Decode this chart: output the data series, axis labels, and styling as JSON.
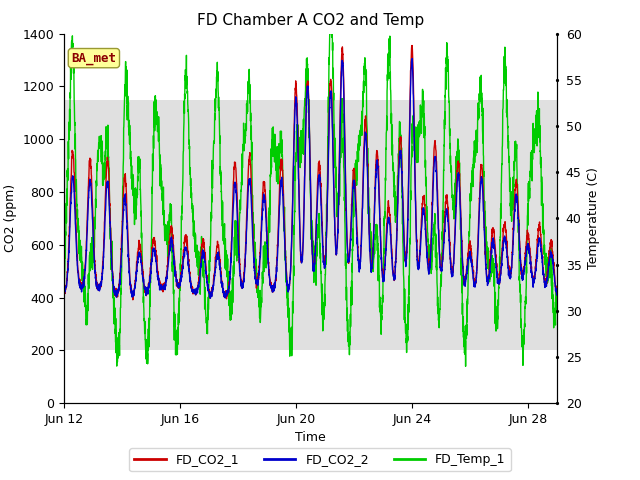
{
  "title": "FD Chamber A CO2 and Temp",
  "xlabel": "Time",
  "ylabel_left": "CO2 (ppm)",
  "ylabel_right": "Temperature (C)",
  "ylim_left": [
    0,
    1400
  ],
  "ylim_right": [
    20,
    60
  ],
  "xlim_start": 0,
  "xlim_end": 17,
  "xtick_positions": [
    0,
    4,
    8,
    12,
    16
  ],
  "xtick_labels": [
    "Jun 12",
    "Jun 16",
    "Jun 20",
    "Jun 24",
    "Jun 28"
  ],
  "yticks_left": [
    0,
    200,
    400,
    600,
    800,
    1000,
    1200,
    1400
  ],
  "yticks_right": [
    20,
    25,
    30,
    35,
    40,
    45,
    50,
    55,
    60
  ],
  "shaded_ymin": 200,
  "shaded_ymax": 1150,
  "color_co2_1": "#cc0000",
  "color_co2_2": "#0000cc",
  "color_temp": "#00cc00",
  "label_co2_1": "FD_CO2_1",
  "label_co2_2": "FD_CO2_2",
  "label_temp": "FD_Temp_1",
  "annotation_text": "BA_met",
  "shaded_color": "#e0e0e0",
  "linewidth": 1.0,
  "title_fontsize": 11,
  "axis_fontsize": 9,
  "tick_fontsize": 9
}
